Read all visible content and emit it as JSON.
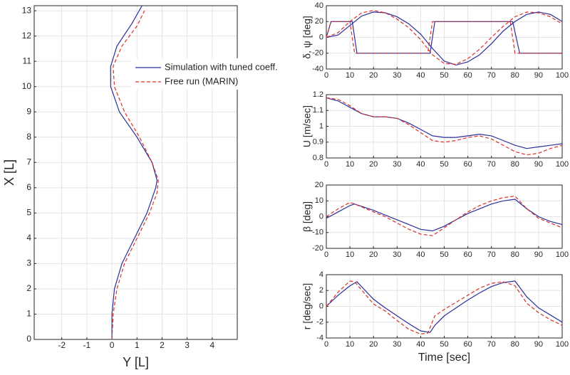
{
  "chart_data": [
    {
      "type": "line",
      "xlabel": "Y [L]",
      "ylabel": "X [L]",
      "xlim": [
        -3.1,
        5
      ],
      "ylim": [
        0,
        13.2
      ],
      "xticks": [
        -2,
        -1,
        0,
        1,
        2,
        3,
        4
      ],
      "yticks": [
        0,
        1,
        2,
        3,
        4,
        5,
        6,
        7,
        8,
        9,
        10,
        11,
        12,
        13
      ],
      "grid": true,
      "legend": true,
      "series": [
        {
          "name": "Simulation with tuned coeff.",
          "color": "#2a2f9a",
          "style": "solid",
          "x": [
            0,
            0,
            0.1,
            0.4,
            0.9,
            1.4,
            1.75,
            1.8,
            1.6,
            1.0,
            0.3,
            -0.05,
            -0.05,
            0.2,
            0.8,
            1.2
          ],
          "values": [
            0,
            1,
            2,
            3,
            4,
            5,
            6,
            6.3,
            7,
            8,
            9,
            10,
            10.8,
            11.6,
            12.5,
            13.2
          ]
        },
        {
          "name": "Free run (MARIN)",
          "color": "#d9302a",
          "style": "dashed",
          "x": [
            0,
            0.05,
            0.2,
            0.5,
            1.0,
            1.5,
            1.8,
            1.85,
            1.6,
            1.1,
            0.5,
            0.1,
            0.05,
            0.4,
            1.0,
            1.3
          ],
          "values": [
            0,
            1,
            2,
            3,
            4,
            5,
            5.8,
            6.3,
            7,
            8,
            9,
            10,
            10.8,
            11.6,
            12.4,
            13
          ]
        }
      ]
    },
    {
      "type": "line",
      "ylabel": "δ, ψ [deg]",
      "xlim": [
        0,
        100
      ],
      "ylim": [
        -40,
        40
      ],
      "xticks": [
        0,
        10,
        20,
        30,
        40,
        50,
        60,
        70,
        80,
        90,
        100
      ],
      "yticks": [
        -40,
        -20,
        0,
        20,
        40
      ],
      "grid": true,
      "series": [
        {
          "color": "#2a2f9a",
          "style": "solid",
          "x": [
            0,
            2,
            11,
            13,
            44,
            46,
            79,
            82,
            100
          ],
          "values": [
            0,
            20,
            20,
            -20,
            -20,
            20,
            20,
            -20,
            -20
          ]
        },
        {
          "color": "#d9302a",
          "style": "dashed",
          "x": [
            0,
            2,
            10,
            12,
            43,
            45,
            78,
            80,
            100
          ],
          "values": [
            0,
            20,
            20,
            -20,
            -20,
            20,
            20,
            -20,
            -20
          ]
        },
        {
          "color": "#2a2f9a",
          "style": "solid",
          "x": [
            0,
            5,
            10,
            15,
            20,
            25,
            30,
            35,
            40,
            45,
            50,
            55,
            60,
            65,
            70,
            75,
            80,
            85,
            90,
            95,
            100
          ],
          "values": [
            0,
            3,
            15,
            27,
            32,
            31,
            26,
            17,
            4,
            -14,
            -30,
            -35,
            -31,
            -22,
            -8,
            8,
            20,
            29,
            32,
            29,
            20
          ]
        },
        {
          "color": "#d9302a",
          "style": "dashed",
          "x": [
            0,
            5,
            10,
            15,
            20,
            25,
            30,
            35,
            40,
            45,
            50,
            55,
            60,
            65,
            70,
            75,
            80,
            85,
            90,
            95,
            100
          ],
          "values": [
            0,
            6,
            20,
            31,
            34,
            31,
            23,
            12,
            -3,
            -22,
            -33,
            -34,
            -27,
            -15,
            0,
            14,
            26,
            32,
            31,
            26,
            17
          ]
        }
      ]
    },
    {
      "type": "line",
      "ylabel": "U [m/sec]",
      "xlim": [
        0,
        100
      ],
      "ylim": [
        0.8,
        1.2
      ],
      "xticks": [
        0,
        10,
        20,
        30,
        40,
        50,
        60,
        70,
        80,
        90,
        100
      ],
      "yticks": [
        0.8,
        0.9,
        1,
        1.1,
        1.2
      ],
      "grid": true,
      "series": [
        {
          "color": "#2a2f9a",
          "style": "solid",
          "x": [
            0,
            5,
            10,
            15,
            20,
            25,
            30,
            35,
            40,
            45,
            50,
            55,
            60,
            65,
            70,
            75,
            80,
            85,
            90,
            95,
            100
          ],
          "values": [
            1.18,
            1.16,
            1.12,
            1.08,
            1.06,
            1.06,
            1.05,
            1.02,
            0.98,
            0.94,
            0.93,
            0.93,
            0.94,
            0.95,
            0.94,
            0.91,
            0.88,
            0.86,
            0.87,
            0.88,
            0.89
          ]
        },
        {
          "color": "#d9302a",
          "style": "dashed",
          "x": [
            0,
            5,
            10,
            15,
            20,
            25,
            30,
            35,
            40,
            45,
            50,
            55,
            60,
            65,
            70,
            75,
            80,
            85,
            90,
            95,
            100
          ],
          "values": [
            1.18,
            1.17,
            1.13,
            1.08,
            1.06,
            1.06,
            1.05,
            1.01,
            0.96,
            0.91,
            0.9,
            0.91,
            0.93,
            0.94,
            0.92,
            0.88,
            0.84,
            0.82,
            0.83,
            0.86,
            0.88
          ]
        }
      ]
    },
    {
      "type": "line",
      "ylabel": "β [deg]",
      "xlim": [
        0,
        100
      ],
      "ylim": [
        -20,
        20
      ],
      "xticks": [
        0,
        10,
        20,
        30,
        40,
        50,
        60,
        70,
        80,
        90,
        100
      ],
      "yticks": [
        -20,
        -10,
        0,
        10,
        20
      ],
      "grid": true,
      "series": [
        {
          "color": "#2a2f9a",
          "style": "solid",
          "x": [
            0,
            5,
            10,
            12,
            20,
            25,
            30,
            35,
            40,
            45,
            50,
            55,
            60,
            65,
            70,
            75,
            80,
            85,
            90,
            95,
            100
          ],
          "values": [
            -1,
            3,
            7,
            8,
            4,
            1,
            -2,
            -5,
            -8,
            -9,
            -6,
            -2,
            2,
            5,
            8,
            10,
            11,
            5,
            0,
            -3,
            -5
          ]
        },
        {
          "color": "#d9302a",
          "style": "dashed",
          "x": [
            0,
            5,
            10,
            12,
            20,
            25,
            30,
            35,
            40,
            45,
            50,
            55,
            60,
            65,
            70,
            75,
            80,
            85,
            90,
            95,
            100
          ],
          "values": [
            0,
            5,
            9,
            8,
            3,
            0,
            -4,
            -8,
            -11,
            -12,
            -7,
            -2,
            3,
            7,
            10,
            12,
            13,
            5,
            -1,
            -4,
            -7
          ]
        }
      ]
    },
    {
      "type": "line",
      "ylabel": "r [deg/sec]",
      "xlabel": "Time [sec]",
      "xlim": [
        0,
        100
      ],
      "ylim": [
        -4,
        4
      ],
      "xticks": [
        0,
        10,
        20,
        30,
        40,
        50,
        60,
        70,
        80,
        90,
        100
      ],
      "yticks": [
        -4,
        -2,
        0,
        2,
        4
      ],
      "grid": true,
      "series": [
        {
          "color": "#2a2f9a",
          "style": "solid",
          "x": [
            0,
            5,
            10,
            13,
            20,
            25,
            30,
            35,
            40,
            44,
            46,
            50,
            55,
            60,
            65,
            70,
            75,
            80,
            85,
            90,
            95,
            100
          ],
          "values": [
            0,
            1.4,
            2.6,
            3.1,
            0.9,
            -0.2,
            -1.2,
            -2.2,
            -3.1,
            -3.3,
            -2.4,
            -1.2,
            -0.2,
            0.8,
            1.7,
            2.5,
            3.0,
            3.2,
            1.2,
            -0.2,
            -1.1,
            -2.0
          ]
        },
        {
          "color": "#d9302a",
          "style": "dashed",
          "x": [
            0,
            5,
            10,
            12,
            20,
            25,
            30,
            35,
            40,
            43,
            46,
            50,
            55,
            60,
            65,
            70,
            75,
            80,
            85,
            90,
            95,
            100
          ],
          "values": [
            0,
            1.8,
            3.2,
            3.1,
            0.3,
            -0.6,
            -1.8,
            -2.9,
            -3.5,
            -3.4,
            -1.2,
            -0.4,
            0.5,
            1.4,
            2.3,
            2.9,
            3.1,
            2.6,
            0.4,
            -0.8,
            -1.7,
            -2.4
          ]
        }
      ]
    }
  ]
}
